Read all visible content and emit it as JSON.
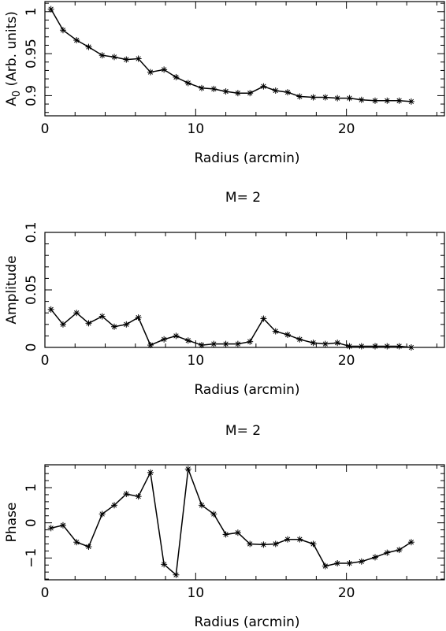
{
  "chart_data": [
    {
      "type": "line",
      "title": "",
      "xlabel": "Radius (arcmin)",
      "ylabel": "A",
      "ylabel_sub": "0",
      "ylabel_rest": " (Arb. units)",
      "xlim": [
        0,
        26.5
      ],
      "ylim": [
        0.876,
        1.012
      ],
      "xticks": [
        0,
        10,
        20
      ],
      "yticks": [
        0.9,
        0.95,
        1
      ],
      "ytick_labels": [
        "0.9",
        "0.95",
        "1"
      ],
      "x": [
        0.4,
        1.2,
        2.1,
        2.9,
        3.8,
        4.6,
        5.4,
        6.2,
        7.0,
        7.9,
        8.7,
        9.5,
        10.4,
        11.2,
        12.0,
        12.8,
        13.6,
        14.5,
        15.3,
        16.1,
        16.9,
        17.8,
        18.6,
        19.4,
        20.2,
        21.0,
        21.9,
        22.7,
        23.5,
        24.3
      ],
      "series": [
        {
          "values": [
            1.003,
            0.978,
            0.966,
            0.958,
            0.948,
            0.946,
            0.943,
            0.944,
            0.928,
            0.931,
            0.922,
            0.915,
            0.909,
            0.908,
            0.905,
            0.903,
            0.903,
            0.911,
            0.906,
            0.904,
            0.899,
            0.898,
            0.898,
            0.897,
            0.897,
            0.895,
            0.894,
            0.894,
            0.894,
            0.893
          ]
        }
      ]
    },
    {
      "type": "line",
      "title": "M= 2",
      "xlabel": "Radius (arcmin)",
      "ylabel": "Amplitude",
      "xlim": [
        0,
        26.5
      ],
      "ylim": [
        0,
        0.1
      ],
      "xticks": [
        0,
        10,
        20
      ],
      "yticks": [
        0,
        0.05,
        0.1
      ],
      "ytick_labels": [
        "0",
        "0.05",
        "0.1"
      ],
      "x": [
        0.4,
        1.2,
        2.1,
        2.9,
        3.8,
        4.6,
        5.4,
        6.2,
        7.0,
        7.9,
        8.7,
        9.5,
        10.4,
        11.2,
        12.0,
        12.8,
        13.6,
        14.5,
        15.3,
        16.1,
        16.9,
        17.8,
        18.6,
        19.4,
        20.2,
        21.0,
        21.9,
        22.7,
        23.5,
        24.3
      ],
      "series": [
        {
          "values": [
            0.033,
            0.02,
            0.03,
            0.021,
            0.027,
            0.018,
            0.02,
            0.026,
            0.002,
            0.007,
            0.01,
            0.006,
            0.002,
            0.003,
            0.003,
            0.003,
            0.005,
            0.025,
            0.014,
            0.011,
            0.007,
            0.004,
            0.003,
            0.004,
            0.001,
            0.001,
            0.001,
            0.001,
            0.001,
            0.0
          ]
        }
      ]
    },
    {
      "type": "line",
      "title": "M= 2",
      "xlabel": "Radius (arcmin)",
      "ylabel": "Phase",
      "xlim": [
        0,
        26.5
      ],
      "ylim": [
        -1.62,
        1.65
      ],
      "xticks": [
        0,
        10,
        20
      ],
      "yticks": [
        -1,
        0,
        1
      ],
      "ytick_labels": [
        "−1",
        "0",
        "1"
      ],
      "x": [
        0.4,
        1.2,
        2.1,
        2.9,
        3.8,
        4.6,
        5.4,
        6.2,
        7.0,
        7.9,
        8.7,
        9.5,
        10.4,
        11.2,
        12.0,
        12.8,
        13.6,
        14.5,
        15.3,
        16.1,
        16.9,
        17.8,
        18.6,
        19.4,
        20.2,
        21.0,
        21.9,
        22.7,
        23.5,
        24.3
      ],
      "series": [
        {
          "values": [
            -0.15,
            -0.07,
            -0.55,
            -0.68,
            0.25,
            0.5,
            0.82,
            0.75,
            1.43,
            -1.18,
            -1.48,
            1.53,
            0.5,
            0.25,
            -0.33,
            -0.28,
            -0.6,
            -0.62,
            -0.6,
            -0.47,
            -0.47,
            -0.6,
            -1.23,
            -1.15,
            -1.15,
            -1.1,
            -0.98,
            -0.85,
            -0.77,
            -0.55
          ]
        }
      ]
    }
  ]
}
